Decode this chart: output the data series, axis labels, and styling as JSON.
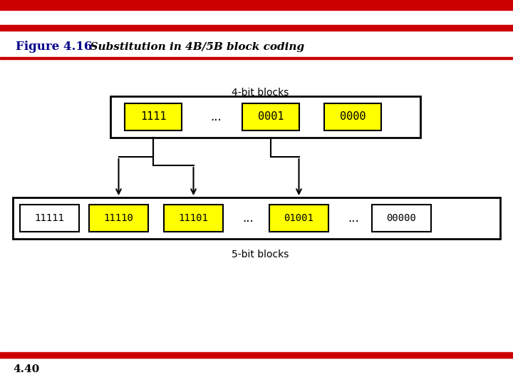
{
  "title_bold": "Figure 4.16",
  "title_italic": "  Substitution in 4B/5B block coding",
  "title_color": "#00008B",
  "page_num": "4.40",
  "red_color": "#CC0000",
  "bg_color": "#FFFFFF",
  "yellow_fill": "#FFFF00",
  "white_fill": "#FFFFFF",
  "black": "#000000",
  "top_row_label": "4-bit blocks",
  "bottom_row_label": "5-bit blocks",
  "dots": "..."
}
